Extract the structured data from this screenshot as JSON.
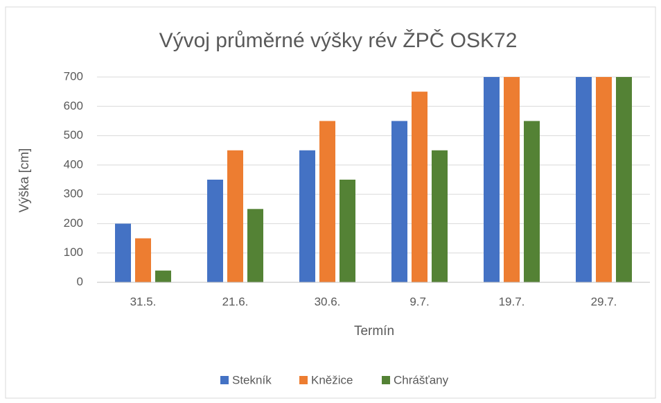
{
  "chart_data": {
    "type": "bar",
    "title": "Vývoj průměrné výšky rév ŽPČ OSK72",
    "x_label": "Termín",
    "y_label": "Výška [cm]",
    "categories": [
      "31.5.",
      "21.6.",
      "30.6.",
      "9.7.",
      "19.7.",
      "29.7."
    ],
    "series": [
      {
        "name": "Stekník",
        "color": "#4472c4",
        "values": [
          200,
          350,
          450,
          550,
          700,
          700
        ]
      },
      {
        "name": "Kněžice",
        "color": "#ed7d31",
        "values": [
          150,
          450,
          550,
          650,
          700,
          700
        ]
      },
      {
        "name": "Chrášťany",
        "color": "#548235",
        "values": [
          40,
          250,
          350,
          450,
          550,
          700
        ]
      }
    ],
    "ylim": [
      0,
      700
    ],
    "yticks": [
      0,
      100,
      200,
      300,
      400,
      500,
      600,
      700
    ],
    "grid": true,
    "legend": "bottom"
  }
}
